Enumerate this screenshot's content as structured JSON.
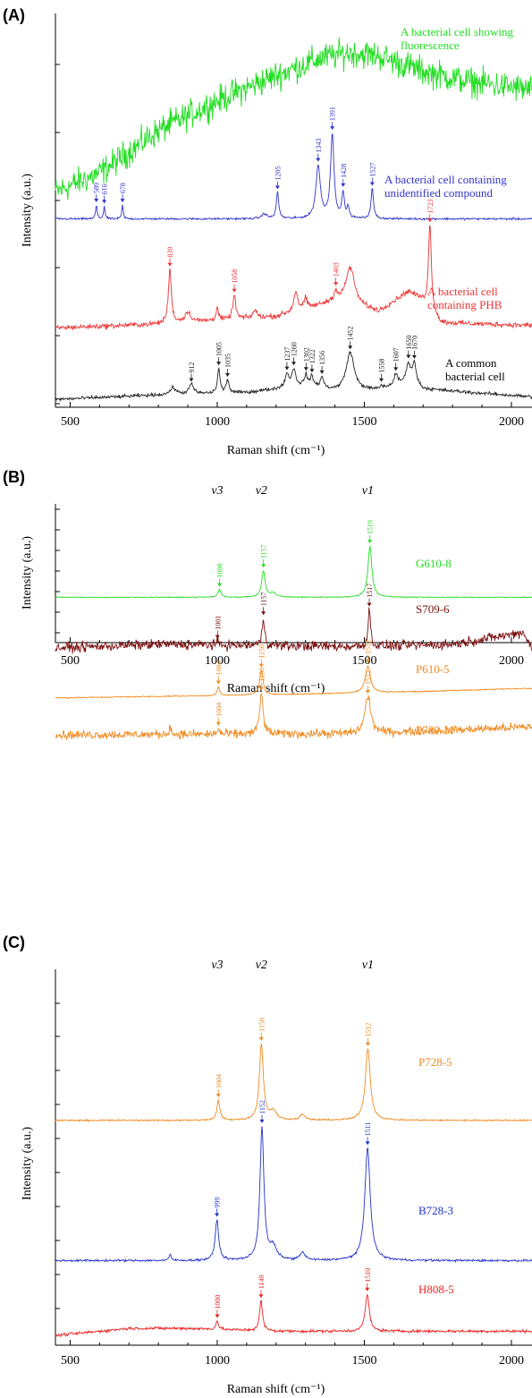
{
  "panel_labels": [
    "(A)",
    "(B)",
    "(C)"
  ],
  "chart_data": [
    {
      "type": "line",
      "panel": "(A)",
      "xlabel": "Raman shift (cm⁻¹)",
      "ylabel": "Intensity (a.u.)",
      "xlim": [
        450,
        2070
      ],
      "xticks": [
        "500",
        "1000",
        "1500",
        "2000"
      ],
      "series": [
        {
          "name": "A bacterial cell showing fluorescence",
          "label_lines": [
            "A bacterial cell showing",
            "fluorescence"
          ],
          "color": "#22dd22",
          "noise": 2.5,
          "points": [
            [
              450,
              0.8
            ],
            [
              600,
              3.0
            ],
            [
              800,
              8.0
            ],
            [
              1000,
              11.5
            ],
            [
              1200,
              14.5
            ],
            [
              1350,
              16.5
            ],
            [
              1450,
              17.2
            ],
            [
              1550,
              16.8
            ],
            [
              1700,
              15.0
            ],
            [
              1850,
              13.8
            ],
            [
              2070,
              12.8
            ]
          ],
          "peaks": [],
          "labels": []
        },
        {
          "name": "A bacterial cell containing unidentified compound",
          "label_lines": [
            "A bacterial cell containing",
            "unidentified compound"
          ],
          "color": "#3333cc",
          "noise": 0.12,
          "points": [
            [
              450,
              0.1
            ],
            [
              2070,
              0.1
            ]
          ],
          "peaks": [
            [
              589,
              1.1,
              3
            ],
            [
              616,
              1.0,
              3
            ],
            [
              678,
              1.1,
              3
            ],
            [
              1160,
              0.4,
              10
            ],
            [
              1205,
              2.1,
              5
            ],
            [
              1343,
              4.2,
              9
            ],
            [
              1391,
              6.7,
              7
            ],
            [
              1428,
              2.0,
              5
            ],
            [
              1445,
              0.9,
              4
            ],
            [
              1527,
              2.4,
              5
            ]
          ],
          "labels": [
            "589",
            "616",
            "678",
            "1205",
            "1343",
            "1391",
            "1428",
            "1527"
          ]
        },
        {
          "name": "A bacterial cell containing PHB",
          "label_lines": [
            "A bacterial cell",
            "containing PHB"
          ],
          "color": "#ee3333",
          "noise": 0.3,
          "points": [
            [
              450,
              0.4
            ],
            [
              800,
              0.7
            ],
            [
              1000,
              1.0
            ],
            [
              1200,
              1.3
            ],
            [
              1400,
              2.5
            ],
            [
              1550,
              1.7
            ],
            [
              1650,
              3.3
            ],
            [
              1690,
              2.7
            ],
            [
              1760,
              0.8
            ],
            [
              2070,
              0.6
            ]
          ],
          "peaks": [
            [
              839,
              4.3,
              6
            ],
            [
              900,
              0.8,
              12
            ],
            [
              1000,
              1.0,
              5
            ],
            [
              1058,
              1.9,
              6
            ],
            [
              1128,
              0.6,
              8
            ],
            [
              1267,
              1.6,
              8
            ],
            [
              1300,
              0.8,
              6
            ],
            [
              1403,
              0.7,
              6
            ],
            [
              1452,
              3.0,
              18
            ],
            [
              1723,
              6.8,
              6
            ]
          ],
          "labels": [
            "839",
            "1058",
            "1403",
            "1723"
          ]
        },
        {
          "name": "A common bacterial cell",
          "label_lines": [
            "A common",
            "bacterial cell"
          ],
          "color": "#222222",
          "noise": 0.3,
          "points": [
            [
              450,
              0.4
            ],
            [
              800,
              0.9
            ],
            [
              1100,
              1.2
            ],
            [
              1300,
              2.0
            ],
            [
              1400,
              1.4
            ],
            [
              1550,
              1.5
            ],
            [
              1650,
              2.5
            ],
            [
              1700,
              1.6
            ],
            [
              2070,
              0.7
            ]
          ],
          "peaks": [
            [
              850,
              0.8,
              12
            ],
            [
              912,
              1.1,
              10
            ],
            [
              1005,
              2.9,
              5
            ],
            [
              1035,
              1.5,
              6
            ],
            [
              1237,
              1.5,
              8
            ],
            [
              1260,
              2.0,
              8
            ],
            [
              1302,
              1.2,
              6
            ],
            [
              1322,
              1.1,
              6
            ],
            [
              1356,
              1.2,
              7
            ],
            [
              1452,
              4.5,
              16
            ],
            [
              1558,
              0.4,
              5
            ],
            [
              1607,
              1.2,
              7
            ],
            [
              1650,
              2.0,
              8
            ],
            [
              1670,
              2.4,
              8
            ]
          ],
          "labels": [
            "912",
            "1005",
            "1035",
            "1237",
            "1260",
            "1302",
            "1322",
            "1356",
            "1452",
            "1558",
            "1607",
            "1650",
            "1670"
          ]
        }
      ]
    },
    {
      "type": "line",
      "panel": "(B)",
      "xlabel": "Raman shift (cm⁻¹)",
      "ylabel": "Intensity (a.u.)",
      "xlim": [
        450,
        2070
      ],
      "xticks": [
        "500",
        "1000",
        "1500",
        "2000"
      ],
      "modes": [
        "v3",
        "v2",
        "v1"
      ],
      "series": [
        {
          "name": "G610-8",
          "color": "#22dd22",
          "noise": 0.07,
          "points": [
            [
              450,
              0.15
            ],
            [
              2070,
              0.15
            ]
          ],
          "peaks": [
            [
              1008,
              0.8,
              6
            ],
            [
              1157,
              2.7,
              7
            ],
            [
              1190,
              0.4,
              12
            ],
            [
              1519,
              5.2,
              8
            ]
          ],
          "labels": [
            "1008",
            "1157",
            "1519"
          ]
        },
        {
          "name": "S709-6",
          "color": "#7a1010",
          "noise": 0.6,
          "points": [
            [
              450,
              0.3
            ],
            [
              800,
              0.6
            ],
            [
              1500,
              0.4
            ],
            [
              1800,
              0.6
            ],
            [
              2040,
              1.6
            ],
            [
              2070,
              0.3
            ]
          ],
          "peaks": [
            [
              1001,
              0.3,
              4
            ],
            [
              1157,
              2.3,
              5
            ],
            [
              1517,
              3.1,
              5
            ]
          ],
          "labels": [
            "1001",
            "1157",
            "1517"
          ]
        },
        {
          "name": "P610-5",
          "color": "#f08a20",
          "noise": 0.08,
          "points": [
            [
              450,
              0.1
            ],
            [
              1200,
              0.4
            ],
            [
              1700,
              0.7
            ],
            [
              2070,
              1.0
            ]
          ],
          "peaks": [
            [
              1004,
              0.8,
              5
            ],
            [
              1150,
              2.3,
              7
            ],
            [
              1512,
              2.5,
              10
            ]
          ],
          "labels": [
            "1004",
            "1150",
            "1512"
          ]
        },
        {
          "name": "P709-11",
          "color": "#f08a20",
          "noise": 0.55,
          "points": [
            [
              450,
              0.3
            ],
            [
              1500,
              0.4
            ],
            [
              2070,
              1.0
            ]
          ],
          "peaks": [
            [
              839,
              0.7,
              4
            ],
            [
              1004,
              0.5,
              4
            ],
            [
              1150,
              3.5,
              7
            ],
            [
              1512,
              3.2,
              12
            ]
          ],
          "labels": [
            "1004",
            "1150",
            "1512"
          ]
        }
      ]
    },
    {
      "type": "line",
      "panel": "(C)",
      "xlabel": "Raman shift (cm⁻¹)",
      "ylabel": "Intensity (a.u.)",
      "xlim": [
        450,
        2070
      ],
      "xticks": [
        "500",
        "1000",
        "1500",
        "2000"
      ],
      "modes": [
        "v3",
        "v2",
        "v1"
      ],
      "series": [
        {
          "name": "P728-5",
          "color": "#f08a20",
          "noise": 0.08,
          "points": [
            [
              450,
              0.2
            ],
            [
              2070,
              0.2
            ]
          ],
          "peaks": [
            [
              1004,
              1.4,
              6
            ],
            [
              1150,
              5.3,
              8
            ],
            [
              1190,
              0.6,
              14
            ],
            [
              1290,
              0.4,
              10
            ],
            [
              1512,
              5.0,
              10
            ]
          ],
          "labels": [
            "1004",
            "1150",
            "1512"
          ]
        },
        {
          "name": "B728-3",
          "color": "#2233cc",
          "noise": 0.1,
          "points": [
            [
              450,
              0.2
            ],
            [
              2070,
              0.2
            ]
          ],
          "peaks": [
            [
              840,
              0.4,
              4
            ],
            [
              999,
              2.6,
              7
            ],
            [
              1152,
              8.5,
              8
            ],
            [
              1190,
              0.8,
              14
            ],
            [
              1290,
              0.5,
              10
            ],
            [
              1511,
              7.2,
              11
            ]
          ],
          "labels": [
            "999",
            "1152",
            "1511"
          ]
        },
        {
          "name": "H808-5",
          "color": "#ee2222",
          "noise": 0.15,
          "points": [
            [
              450,
              0.3
            ],
            [
              700,
              0.8
            ],
            [
              900,
              0.8
            ],
            [
              1200,
              0.6
            ],
            [
              1600,
              0.6
            ],
            [
              2070,
              0.6
            ]
          ],
          "peaks": [
            [
              1000,
              0.6,
              5
            ],
            [
              1149,
              2.1,
              6
            ],
            [
              1510,
              2.6,
              8
            ]
          ],
          "labels": [
            "1000",
            "1149",
            "1510"
          ]
        }
      ]
    }
  ]
}
